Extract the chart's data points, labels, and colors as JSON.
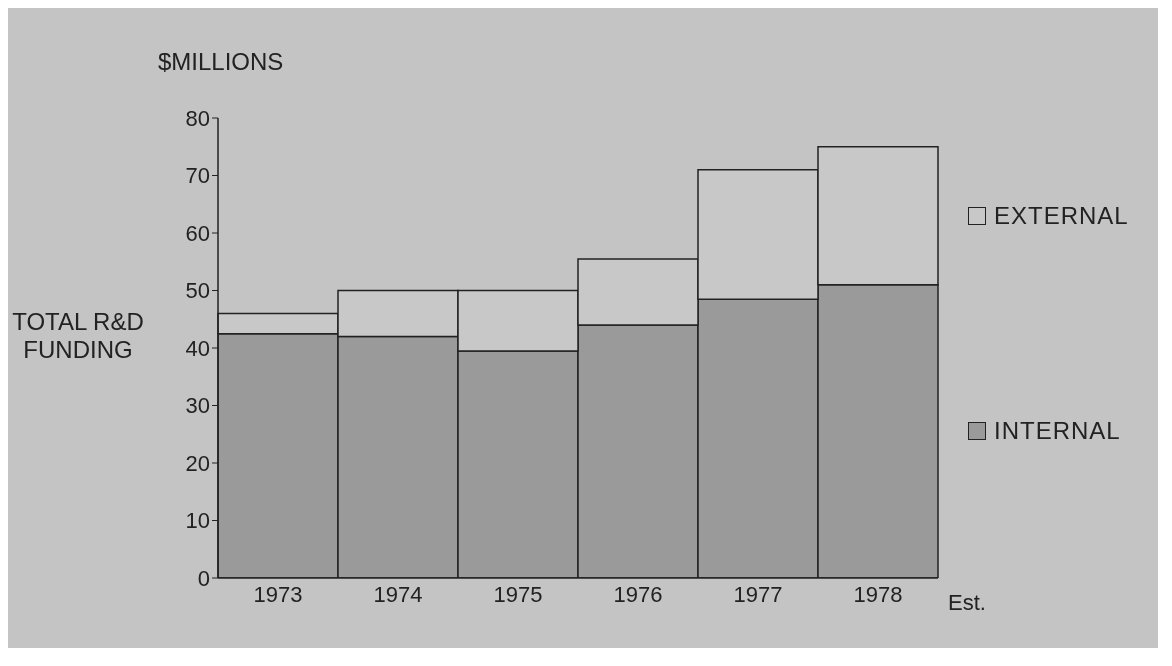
{
  "chart_data": {
    "type": "bar",
    "stacked": true,
    "ylabel": "TOTAL R&D FUNDING",
    "annotations": [
      "$MILLIONS",
      "Est."
    ],
    "categories": [
      "1973",
      "1974",
      "1975",
      "1976",
      "1977",
      "1978"
    ],
    "series": [
      {
        "name": "INTERNAL",
        "color": "#9a9a9a",
        "values": [
          42.5,
          42,
          39.5,
          44,
          48.5,
          51
        ]
      },
      {
        "name": "EXTERNAL",
        "color": "#c8c8c8",
        "values": [
          3.5,
          8,
          10.5,
          11.5,
          22.5,
          24
        ]
      }
    ],
    "ylim": [
      0,
      80
    ],
    "yticks": [
      0,
      10,
      20,
      30,
      40,
      50,
      60,
      70,
      80
    ],
    "grid": false,
    "legend": "right"
  }
}
